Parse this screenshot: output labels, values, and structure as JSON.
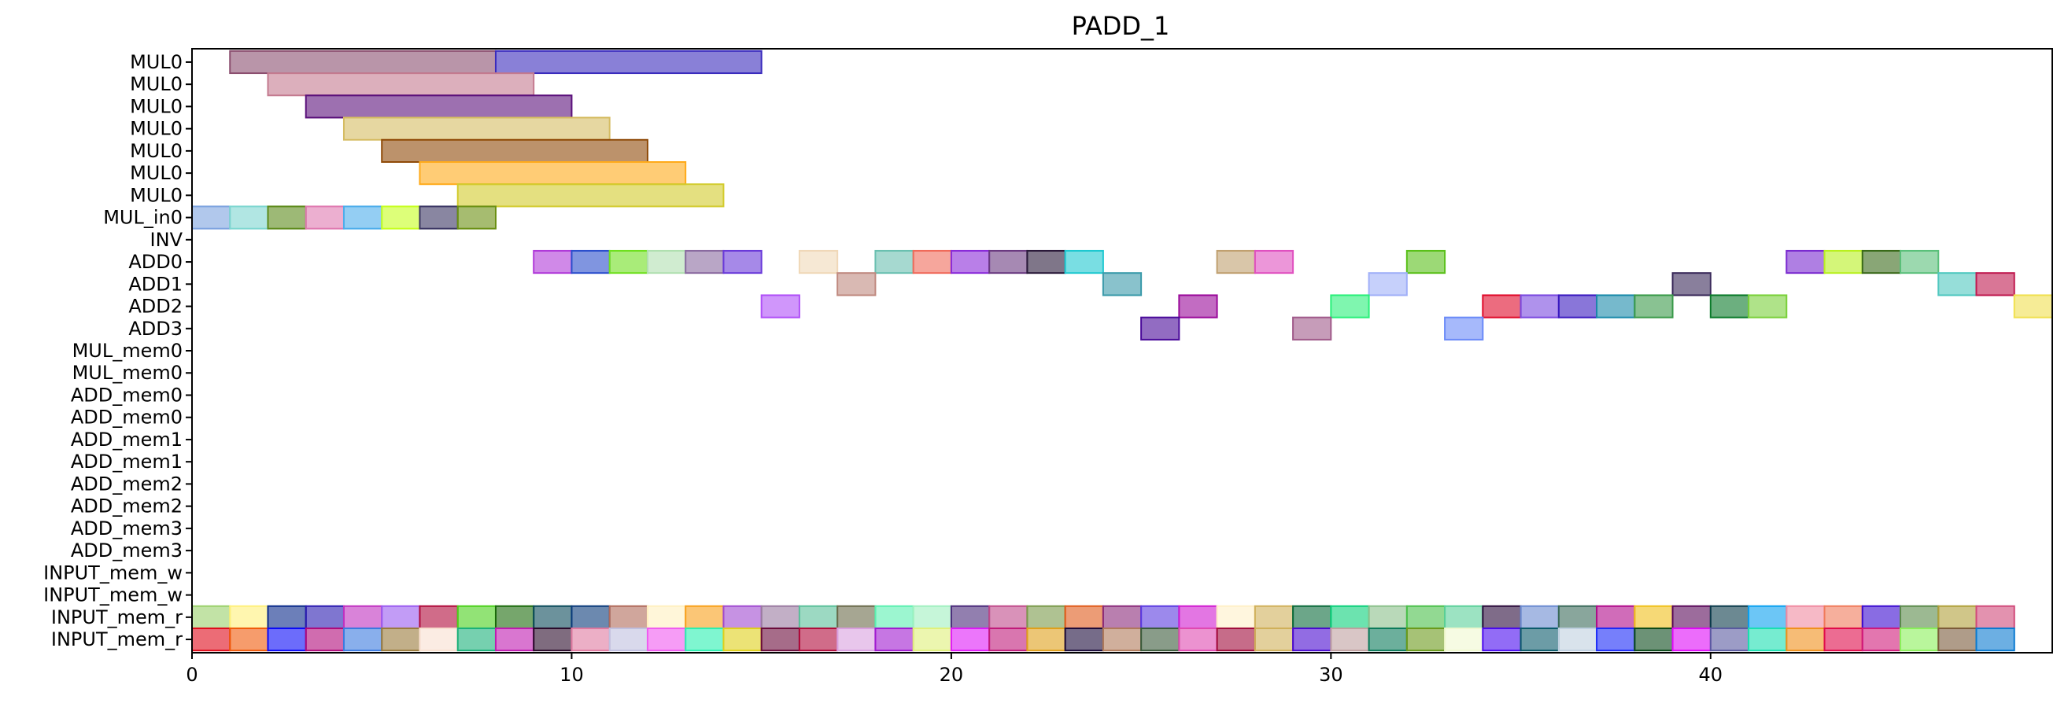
{
  "chart_data": {
    "type": "gantt",
    "title": "PADD_1",
    "xlabel": "",
    "ylabel": "",
    "xlim": [
      0,
      49
    ],
    "xticks": [
      0,
      10,
      20,
      30,
      40
    ],
    "rows": [
      "MUL0",
      "MUL0",
      "MUL0",
      "MUL0",
      "MUL0",
      "MUL0",
      "MUL0",
      "MUL_in0",
      "INV",
      "ADD0",
      "ADD1",
      "ADD2",
      "ADD3",
      "MUL_mem0",
      "MUL_mem0",
      "ADD_mem0",
      "ADD_mem0",
      "ADD_mem1",
      "ADD_mem1",
      "ADD_mem2",
      "ADD_mem2",
      "ADD_mem3",
      "ADD_mem3",
      "INPUT_mem_w",
      "INPUT_mem_w",
      "INPUT_mem_r",
      "INPUT_mem_r"
    ],
    "tasks": [
      {
        "row": 0,
        "start": 1,
        "end": 8,
        "color": "#8b4e6f"
      },
      {
        "row": 0,
        "start": 8,
        "end": 15,
        "color": "#3a2bbd"
      },
      {
        "row": 1,
        "start": 2,
        "end": 9,
        "color": "#c47a8f"
      },
      {
        "row": 2,
        "start": 3,
        "end": 10,
        "color": "#5b117b"
      },
      {
        "row": 3,
        "start": 4,
        "end": 11,
        "color": "#d5bc62"
      },
      {
        "row": 4,
        "start": 5,
        "end": 12,
        "color": "#8f4a08"
      },
      {
        "row": 5,
        "start": 6,
        "end": 13,
        "color": "#ffaa19"
      },
      {
        "row": 6,
        "start": 7,
        "end": 14,
        "color": "#d2cb2c"
      },
      {
        "row": 7,
        "start": 0,
        "end": 1,
        "color": "#7da3e0"
      },
      {
        "row": 7,
        "start": 1,
        "end": 2,
        "color": "#7dd6d0"
      },
      {
        "row": 7,
        "start": 2,
        "end": 3,
        "color": "#5c8a1a"
      },
      {
        "row": 7,
        "start": 3,
        "end": 4,
        "color": "#df79b0"
      },
      {
        "row": 7,
        "start": 4,
        "end": 5,
        "color": "#4cadeb"
      },
      {
        "row": 7,
        "start": 5,
        "end": 6,
        "color": "#c6ff1f"
      },
      {
        "row": 7,
        "start": 6,
        "end": 7,
        "color": "#3a3563"
      },
      {
        "row": 7,
        "start": 7,
        "end": 8,
        "color": "#6a8f11"
      },
      {
        "row": 9,
        "start": 9,
        "end": 10,
        "color": "#b03ad9"
      },
      {
        "row": 9,
        "start": 10,
        "end": 11,
        "color": "#2c4fcc"
      },
      {
        "row": 9,
        "start": 11,
        "end": 12,
        "color": "#6fe01f"
      },
      {
        "row": 9,
        "start": 12,
        "end": 13,
        "color": "#b0e0b0"
      },
      {
        "row": 9,
        "start": 13,
        "end": 14,
        "color": "#8a6aa0"
      },
      {
        "row": 9,
        "start": 14,
        "end": 15,
        "color": "#6a3ad9"
      },
      {
        "row": 9,
        "start": 16,
        "end": 17,
        "color": "#f0d8b8"
      },
      {
        "row": 9,
        "start": 18,
        "end": 19,
        "color": "#6ac0b0"
      },
      {
        "row": 9,
        "start": 19,
        "end": 20,
        "color": "#f06a5a"
      },
      {
        "row": 9,
        "start": 20,
        "end": 21,
        "color": "#8a2ad9"
      },
      {
        "row": 9,
        "start": 21,
        "end": 22,
        "color": "#6a3a80"
      },
      {
        "row": 9,
        "start": 22,
        "end": 23,
        "color": "#2a1a3a"
      },
      {
        "row": 9,
        "start": 23,
        "end": 24,
        "color": "#1fc8d0"
      },
      {
        "row": 9,
        "start": 27,
        "end": 28,
        "color": "#c0a070"
      },
      {
        "row": 9,
        "start": 28,
        "end": 29,
        "color": "#e050c0"
      },
      {
        "row": 9,
        "start": 32,
        "end": 33,
        "color": "#5ac01a"
      },
      {
        "row": 9,
        "start": 42,
        "end": 43,
        "color": "#7a2ad0"
      },
      {
        "row": 9,
        "start": 43,
        "end": 44,
        "color": "#b8f01f"
      },
      {
        "row": 9,
        "start": 44,
        "end": 45,
        "color": "#3a6a1a"
      },
      {
        "row": 9,
        "start": 45,
        "end": 46,
        "color": "#5ac07a"
      },
      {
        "row": 10,
        "start": 17,
        "end": 18,
        "color": "#c08a80"
      },
      {
        "row": 10,
        "start": 24,
        "end": 25,
        "color": "#3a9aaa"
      },
      {
        "row": 10,
        "start": 31,
        "end": 32,
        "color": "#a0b0f8"
      },
      {
        "row": 10,
        "start": 39,
        "end": 40,
        "color": "#3a2a5a"
      },
      {
        "row": 10,
        "start": 46,
        "end": 47,
        "color": "#50c8c0"
      },
      {
        "row": 10,
        "start": 47,
        "end": 48,
        "color": "#c01a50"
      },
      {
        "row": 11,
        "start": 15,
        "end": 16,
        "color": "#b050f8"
      },
      {
        "row": 11,
        "start": 26,
        "end": 27,
        "color": "#9a0a9a"
      },
      {
        "row": 11,
        "start": 30,
        "end": 31,
        "color": "#2af07a"
      },
      {
        "row": 11,
        "start": 34,
        "end": 35,
        "color": "#e00a2a"
      },
      {
        "row": 11,
        "start": 35,
        "end": 36,
        "color": "#7a4ae0"
      },
      {
        "row": 11,
        "start": 36,
        "end": 37,
        "color": "#3a1ac0"
      },
      {
        "row": 11,
        "start": 37,
        "end": 38,
        "color": "#1a8aaa"
      },
      {
        "row": 11,
        "start": 38,
        "end": 39,
        "color": "#3a9a4a"
      },
      {
        "row": 11,
        "start": 40,
        "end": 41,
        "color": "#0a7a2a"
      },
      {
        "row": 11,
        "start": 41,
        "end": 42,
        "color": "#7ad03a"
      },
      {
        "row": 11,
        "start": 48,
        "end": 49,
        "color": "#f0e050"
      },
      {
        "row": 12,
        "start": 25,
        "end": 26,
        "color": "#4a0a9a"
      },
      {
        "row": 12,
        "start": 29,
        "end": 30,
        "color": "#a05a8a"
      },
      {
        "row": 12,
        "start": 33,
        "end": 34,
        "color": "#6a8af8"
      },
      {
        "row": 25,
        "start": 0,
        "end": 1,
        "color": "#9ad06a"
      },
      {
        "row": 25,
        "start": 1,
        "end": 2,
        "color": "#fff07a"
      },
      {
        "row": 25,
        "start": 2,
        "end": 3,
        "color": "#0a2a8a"
      },
      {
        "row": 25,
        "start": 3,
        "end": 4,
        "color": "#2a1ab0"
      },
      {
        "row": 25,
        "start": 4,
        "end": 5,
        "color": "#c030c0"
      },
      {
        "row": 25,
        "start": 5,
        "end": 6,
        "color": "#9a5af0"
      },
      {
        "row": 25,
        "start": 6,
        "end": 7,
        "color": "#b00a3a"
      },
      {
        "row": 25,
        "start": 7,
        "end": 8,
        "color": "#4ad01a"
      },
      {
        "row": 25,
        "start": 8,
        "end": 9,
        "color": "#1a6a0a"
      },
      {
        "row": 25,
        "start": 9,
        "end": 10,
        "color": "#0a4a5a"
      },
      {
        "row": 25,
        "start": 10,
        "end": 11,
        "color": "#0a3a7a"
      },
      {
        "row": 25,
        "start": 11,
        "end": 12,
        "color": "#b06a5a"
      },
      {
        "row": 25,
        "start": 12,
        "end": 13,
        "color": "#fff0c0"
      },
      {
        "row": 25,
        "start": 13,
        "end": 14,
        "color": "#f8a01a"
      },
      {
        "row": 25,
        "start": 14,
        "end": 15,
        "color": "#a04ad0"
      },
      {
        "row": 25,
        "start": 15,
        "end": 16,
        "color": "#9a7aa0"
      },
      {
        "row": 25,
        "start": 16,
        "end": 17,
        "color": "#5ac09a"
      },
      {
        "row": 25,
        "start": 17,
        "end": 18,
        "color": "#6a6a4a"
      },
      {
        "row": 25,
        "start": 18,
        "end": 19,
        "color": "#5af0b0"
      },
      {
        "row": 25,
        "start": 19,
        "end": 20,
        "color": "#a0f0c0"
      },
      {
        "row": 25,
        "start": 20,
        "end": 21,
        "color": "#4a2a7a"
      },
      {
        "row": 25,
        "start": 21,
        "end": 22,
        "color": "#c04a8a"
      },
      {
        "row": 25,
        "start": 22,
        "end": 23,
        "color": "#7a9a4a"
      },
      {
        "row": 25,
        "start": 23,
        "end": 24,
        "color": "#e05a1a"
      },
      {
        "row": 25,
        "start": 24,
        "end": 25,
        "color": "#8a2a7a"
      },
      {
        "row": 25,
        "start": 25,
        "end": 26,
        "color": "#5a3ae0"
      },
      {
        "row": 25,
        "start": 26,
        "end": 27,
        "color": "#d01ad0"
      },
      {
        "row": 25,
        "start": 27,
        "end": 28,
        "color": "#fff0c8"
      },
      {
        "row": 25,
        "start": 28,
        "end": 29,
        "color": "#d0b05a"
      },
      {
        "row": 25,
        "start": 29,
        "end": 30,
        "color": "#0a6a3a"
      },
      {
        "row": 25,
        "start": 30,
        "end": 31,
        "color": "#0ad07a"
      },
      {
        "row": 25,
        "start": 31,
        "end": 32,
        "color": "#8ac08a"
      },
      {
        "row": 25,
        "start": 32,
        "end": 33,
        "color": "#4ac04a"
      },
      {
        "row": 25,
        "start": 33,
        "end": 34,
        "color": "#5ad09a"
      },
      {
        "row": 25,
        "start": 34,
        "end": 35,
        "color": "#2a0a3a"
      },
      {
        "row": 25,
        "start": 35,
        "end": 36,
        "color": "#6a8ad0"
      },
      {
        "row": 25,
        "start": 36,
        "end": 37,
        "color": "#3a6a5a"
      },
      {
        "row": 25,
        "start": 37,
        "end": 38,
        "color": "#b00a8a"
      },
      {
        "row": 25,
        "start": 38,
        "end": 39,
        "color": "#f0c01a"
      },
      {
        "row": 25,
        "start": 39,
        "end": 40,
        "color": "#5a0a5a"
      },
      {
        "row": 25,
        "start": 40,
        "end": 41,
        "color": "#0a3a4a"
      },
      {
        "row": 25,
        "start": 41,
        "end": 42,
        "color": "#0aa0f0"
      },
      {
        "row": 25,
        "start": 42,
        "end": 43,
        "color": "#f08aa0"
      },
      {
        "row": 25,
        "start": 43,
        "end": 44,
        "color": "#f07a5a"
      },
      {
        "row": 25,
        "start": 44,
        "end": 45,
        "color": "#3a0ad0"
      },
      {
        "row": 25,
        "start": 45,
        "end": 46,
        "color": "#5a8a4a"
      },
      {
        "row": 25,
        "start": 46,
        "end": 47,
        "color": "#b0a03a"
      },
      {
        "row": 25,
        "start": 47,
        "end": 48,
        "color": "#d04a7a"
      },
      {
        "row": 26,
        "start": 0,
        "end": 1,
        "color": "#e00a1a"
      },
      {
        "row": 26,
        "start": 1,
        "end": 2,
        "color": "#f05a0a"
      },
      {
        "row": 26,
        "start": 2,
        "end": 3,
        "color": "#0a0af8"
      },
      {
        "row": 26,
        "start": 3,
        "end": 4,
        "color": "#b00a7a"
      },
      {
        "row": 26,
        "start": 4,
        "end": 5,
        "color": "#3a7ae0"
      },
      {
        "row": 26,
        "start": 5,
        "end": 6,
        "color": "#9a7a3a"
      },
      {
        "row": 26,
        "start": 6,
        "end": 7,
        "color": "#f8e0d0"
      },
      {
        "row": 26,
        "start": 7,
        "end": 8,
        "color": "#1ab07a"
      },
      {
        "row": 26,
        "start": 8,
        "end": 9,
        "color": "#c01ab0"
      },
      {
        "row": 26,
        "start": 9,
        "end": 10,
        "color": "#2a0a2a"
      },
      {
        "row": 26,
        "start": 10,
        "end": 11,
        "color": "#e07aa0"
      },
      {
        "row": 26,
        "start": 11,
        "end": 12,
        "color": "#c0c0e0"
      },
      {
        "row": 26,
        "start": 12,
        "end": 13,
        "color": "#f05af0"
      },
      {
        "row": 26,
        "start": 13,
        "end": 14,
        "color": "#2af0b0"
      },
      {
        "row": 26,
        "start": 14,
        "end": 15,
        "color": "#e0d01a"
      },
      {
        "row": 26,
        "start": 15,
        "end": 16,
        "color": "#6a0a3a"
      },
      {
        "row": 26,
        "start": 16,
        "end": 17,
        "color": "#b00a3a"
      },
      {
        "row": 26,
        "start": 17,
        "end": 18,
        "color": "#d8a0e0"
      },
      {
        "row": 26,
        "start": 18,
        "end": 19,
        "color": "#a01ad0"
      },
      {
        "row": 26,
        "start": 19,
        "end": 20,
        "color": "#e0f07a"
      },
      {
        "row": 26,
        "start": 20,
        "end": 21,
        "color": "#e01af8"
      },
      {
        "row": 26,
        "start": 21,
        "end": 22,
        "color": "#c01a7a"
      },
      {
        "row": 26,
        "start": 22,
        "end": 23,
        "color": "#e0a01a"
      },
      {
        "row": 26,
        "start": 23,
        "end": 24,
        "color": "#1a0a3a"
      },
      {
        "row": 26,
        "start": 24,
        "end": 25,
        "color": "#b07a5a"
      },
      {
        "row": 26,
        "start": 25,
        "end": 26,
        "color": "#3a5a3a"
      },
      {
        "row": 26,
        "start": 26,
        "end": 27,
        "color": "#e04ab0"
      },
      {
        "row": 26,
        "start": 27,
        "end": 28,
        "color": "#a00a3a"
      },
      {
        "row": 26,
        "start": 28,
        "end": 29,
        "color": "#d0b05a"
      },
      {
        "row": 26,
        "start": 29,
        "end": 30,
        "color": "#4a0ad0"
      },
      {
        "row": 26,
        "start": 30,
        "end": 31,
        "color": "#c0a0a0"
      },
      {
        "row": 26,
        "start": 31,
        "end": 32,
        "color": "#0a7a5a"
      },
      {
        "row": 26,
        "start": 32,
        "end": 33,
        "color": "#6a9a1a"
      },
      {
        "row": 26,
        "start": 33,
        "end": 34,
        "color": "#f0f8d0"
      },
      {
        "row": 26,
        "start": 34,
        "end": 35,
        "color": "#4a0af0"
      },
      {
        "row": 26,
        "start": 35,
        "end": 36,
        "color": "#0a5a6a"
      },
      {
        "row": 26,
        "start": 36,
        "end": 37,
        "color": "#c0d0e0"
      },
      {
        "row": 26,
        "start": 37,
        "end": 38,
        "color": "#1a2af8"
      },
      {
        "row": 26,
        "start": 38,
        "end": 39,
        "color": "#0a4a1a"
      },
      {
        "row": 26,
        "start": 39,
        "end": 40,
        "color": "#e00af8"
      },
      {
        "row": 26,
        "start": 40,
        "end": 41,
        "color": "#5a5aa0"
      },
      {
        "row": 26,
        "start": 41,
        "end": 42,
        "color": "#1ae0b0"
      },
      {
        "row": 26,
        "start": 42,
        "end": 43,
        "color": "#f0901a"
      },
      {
        "row": 26,
        "start": 43,
        "end": 44,
        "color": "#e00a4a"
      },
      {
        "row": 26,
        "start": 44,
        "end": 45,
        "color": "#d01a7a"
      },
      {
        "row": 26,
        "start": 45,
        "end": 46,
        "color": "#8af05a"
      },
      {
        "row": 26,
        "start": 46,
        "end": 47,
        "color": "#7a5a3a"
      },
      {
        "row": 26,
        "start": 47,
        "end": 48,
        "color": "#0a7ad0"
      }
    ]
  }
}
